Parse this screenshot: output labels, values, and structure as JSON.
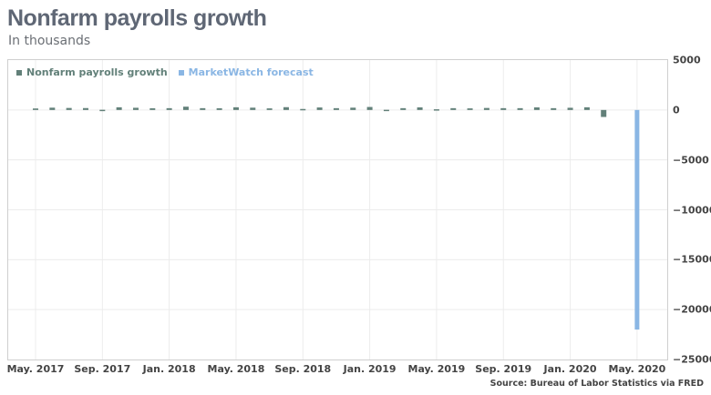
{
  "header": {
    "title": "Nonfarm payrolls growth",
    "subtitle": "In thousands"
  },
  "legend": [
    {
      "label": "Nonfarm payrolls growth",
      "color": "#628079"
    },
    {
      "label": "MarketWatch forecast",
      "color": "#8ab6e4"
    }
  ],
  "source": "Source: Bureau of Labor Statistics via FRED",
  "colors": {
    "nonfarm": "#628079",
    "forecast": "#8ab6e4",
    "grid": "#ececec",
    "frame": "#cfcfcf"
  },
  "chart_data": {
    "type": "bar",
    "title": "Nonfarm payrolls growth",
    "subtitle": "In thousands",
    "xlabel": "",
    "ylabel": "",
    "ylim": [
      -25000,
      5000
    ],
    "yticks": [
      5000,
      0,
      -5000,
      -10000,
      -15000,
      -20000,
      -25000
    ],
    "xticks": [
      "May. 2017",
      "Sep. 2017",
      "Jan. 2018",
      "May. 2018",
      "Sep. 2018",
      "Jan. 2019",
      "May. 2019",
      "Sep. 2019",
      "Jan. 2020",
      "May. 2020"
    ],
    "grid": true,
    "legend_position": "top-left",
    "y_axis_side": "right",
    "categories": [
      "May 2017",
      "Jun 2017",
      "Jul 2017",
      "Aug 2017",
      "Sep 2017",
      "Oct 2017",
      "Nov 2017",
      "Dec 2017",
      "Jan 2018",
      "Feb 2018",
      "Mar 2018",
      "Apr 2018",
      "May 2018",
      "Jun 2018",
      "Jul 2018",
      "Aug 2018",
      "Sep 2018",
      "Oct 2018",
      "Nov 2018",
      "Dec 2018",
      "Jan 2019",
      "Feb 2019",
      "Mar 2019",
      "Apr 2019",
      "May 2019",
      "Jun 2019",
      "Jul 2019",
      "Aug 2019",
      "Sep 2019",
      "Oct 2019",
      "Nov 2019",
      "Dec 2019",
      "Jan 2020",
      "Feb 2020",
      "Mar 2020",
      "Apr 2020",
      "May 2020"
    ],
    "series": [
      {
        "name": "Nonfarm payrolls growth",
        "color": "#628079",
        "values": [
          150,
          230,
          200,
          190,
          20,
          270,
          220,
          170,
          180,
          330,
          180,
          170,
          270,
          230,
          160,
          280,
          100,
          250,
          180,
          230,
          300,
          20,
          180,
          260,
          70,
          180,
          160,
          200,
          180,
          180,
          260,
          180,
          220,
          270,
          -700,
          null,
          null
        ]
      },
      {
        "name": "MarketWatch forecast",
        "color": "#8ab6e4",
        "values": [
          null,
          null,
          null,
          null,
          null,
          null,
          null,
          null,
          null,
          null,
          null,
          null,
          null,
          null,
          null,
          null,
          null,
          null,
          null,
          null,
          null,
          null,
          null,
          null,
          null,
          null,
          null,
          null,
          null,
          null,
          null,
          null,
          null,
          null,
          null,
          null,
          -22000
        ]
      }
    ]
  }
}
